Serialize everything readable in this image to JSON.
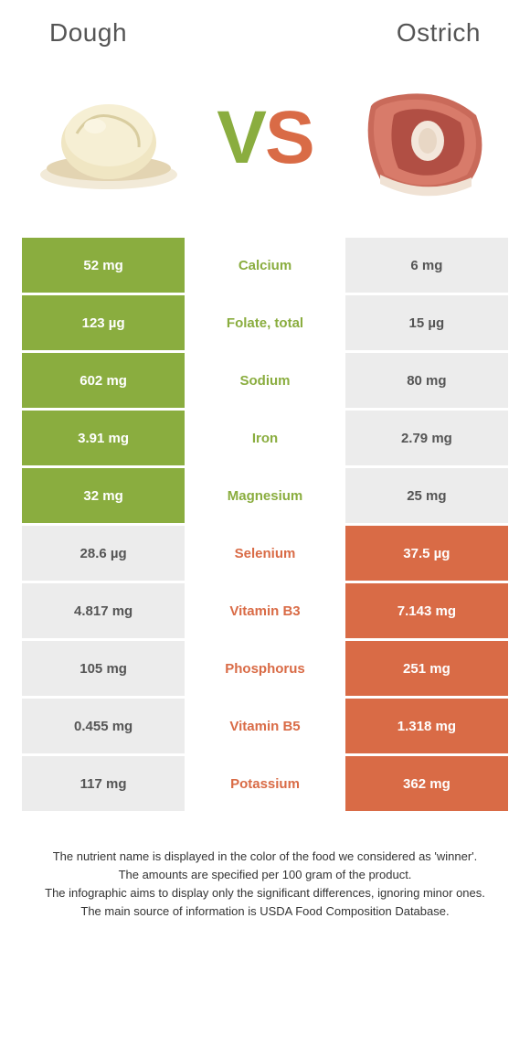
{
  "colors": {
    "green": "#8aad3f",
    "orange": "#d96b46",
    "grey_text": "#555555"
  },
  "header": {
    "left_title": "Dough",
    "right_title": "Ostrich",
    "vs_v": "V",
    "vs_s": "S"
  },
  "rows": [
    {
      "left": "52 mg",
      "label": "Calcium",
      "right": "6 mg",
      "winner": "left"
    },
    {
      "left": "123 µg",
      "label": "Folate, total",
      "right": "15 µg",
      "winner": "left"
    },
    {
      "left": "602 mg",
      "label": "Sodium",
      "right": "80 mg",
      "winner": "left"
    },
    {
      "left": "3.91 mg",
      "label": "Iron",
      "right": "2.79 mg",
      "winner": "left"
    },
    {
      "left": "32 mg",
      "label": "Magnesium",
      "right": "25 mg",
      "winner": "left"
    },
    {
      "left": "28.6 µg",
      "label": "Selenium",
      "right": "37.5 µg",
      "winner": "right"
    },
    {
      "left": "4.817 mg",
      "label": "Vitamin B3",
      "right": "7.143 mg",
      "winner": "right"
    },
    {
      "left": "105 mg",
      "label": "Phosphorus",
      "right": "251 mg",
      "winner": "right"
    },
    {
      "left": "0.455 mg",
      "label": "Vitamin B5",
      "right": "1.318 mg",
      "winner": "right"
    },
    {
      "left": "117 mg",
      "label": "Potassium",
      "right": "362 mg",
      "winner": "right"
    }
  ],
  "footnotes": [
    "The nutrient name is displayed in the color of the food we considered as 'winner'.",
    "The amounts are specified per 100 gram of the product.",
    "The infographic aims to display only the significant differences, ignoring minor ones.",
    "The main source of information is USDA Food Composition Database."
  ]
}
